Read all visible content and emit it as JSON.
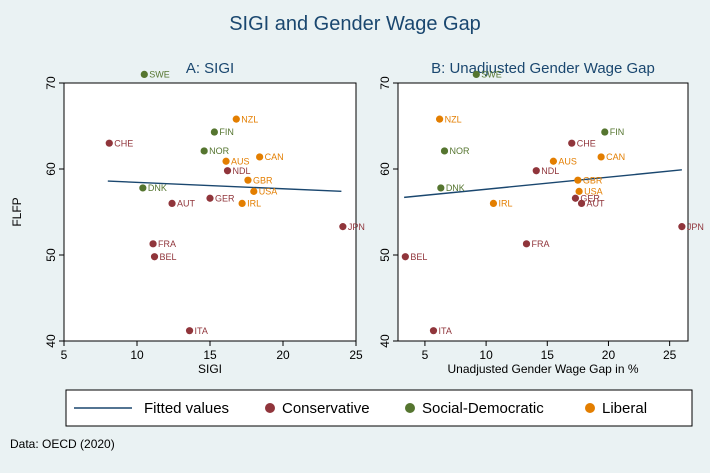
{
  "title": "SIGI and Gender Wage Gap",
  "note": "Data: OECD (2020)",
  "colors": {
    "Conservative": "#90353b",
    "Social-Democratic": "#55752f",
    "Liberal": "#e37e00",
    "fit": "#1a476f",
    "plot_bg": "#ffffff",
    "outer_bg": "#eaf2f3"
  },
  "legend": {
    "position": "bottom",
    "items": [
      {
        "label": "Fitted values",
        "kind": "line",
        "color": "#1a476f"
      },
      {
        "label": "Conservative",
        "kind": "dot",
        "color": "#90353b"
      },
      {
        "label": "Social-Democratic",
        "kind": "dot",
        "color": "#55752f"
      },
      {
        "label": "Liberal",
        "kind": "dot",
        "color": "#e37e00"
      }
    ]
  },
  "chart_data": [
    {
      "type": "scatter",
      "title": "A: SIGI",
      "xlabel": "SIGI",
      "ylabel": "FLFP",
      "xlim": [
        5,
        25
      ],
      "ylim": [
        40,
        70
      ],
      "xticks": [
        5,
        10,
        15,
        20,
        25
      ],
      "yticks": [
        40,
        50,
        60,
        70
      ],
      "fit": {
        "x": [
          8,
          24
        ],
        "y": [
          58.6,
          57.4
        ]
      },
      "points": [
        {
          "label": "SWE",
          "x": 10.5,
          "y": 71,
          "group": "Social-Democratic"
        },
        {
          "label": "NZL",
          "x": 16.8,
          "y": 65.8,
          "group": "Liberal"
        },
        {
          "label": "FIN",
          "x": 15.3,
          "y": 64.3,
          "group": "Social-Democratic"
        },
        {
          "label": "CHE",
          "x": 8.1,
          "y": 63,
          "group": "Conservative"
        },
        {
          "label": "NOR",
          "x": 14.6,
          "y": 62.1,
          "group": "Social-Democratic"
        },
        {
          "label": "CAN",
          "x": 18.4,
          "y": 61.4,
          "group": "Liberal"
        },
        {
          "label": "AUS",
          "x": 16.1,
          "y": 60.9,
          "group": "Liberal"
        },
        {
          "label": "NDL",
          "x": 16.2,
          "y": 59.8,
          "group": "Conservative"
        },
        {
          "label": "GBR",
          "x": 17.6,
          "y": 58.7,
          "group": "Liberal"
        },
        {
          "label": "DNK",
          "x": 10.4,
          "y": 57.8,
          "group": "Social-Democratic"
        },
        {
          "label": "USA",
          "x": 18,
          "y": 57.4,
          "group": "Liberal"
        },
        {
          "label": "GER",
          "x": 15,
          "y": 56.6,
          "group": "Conservative"
        },
        {
          "label": "IRL",
          "x": 17.2,
          "y": 56,
          "group": "Liberal"
        },
        {
          "label": "AUT",
          "x": 12.4,
          "y": 56,
          "group": "Conservative"
        },
        {
          "label": "JPN",
          "x": 24.1,
          "y": 53.3,
          "group": "Conservative"
        },
        {
          "label": "FRA",
          "x": 11.1,
          "y": 51.3,
          "group": "Conservative"
        },
        {
          "label": "BEL",
          "x": 11.2,
          "y": 49.8,
          "group": "Conservative"
        },
        {
          "label": "ITA",
          "x": 13.6,
          "y": 41.2,
          "group": "Conservative"
        }
      ]
    },
    {
      "type": "scatter",
      "title": "B: Unadjusted Gender Wage Gap",
      "xlabel": "Unadjusted Gender Wage Gap in %",
      "ylabel": "",
      "xlim": [
        2.8,
        26.5
      ],
      "ylim": [
        40,
        70
      ],
      "xticks": [
        5,
        10,
        15,
        20,
        25
      ],
      "yticks": [
        40,
        50,
        60,
        70
      ],
      "fit": {
        "x": [
          3.3,
          26
        ],
        "y": [
          56.7,
          59.9
        ]
      },
      "points": [
        {
          "label": "SWE",
          "x": 9.2,
          "y": 71,
          "group": "Social-Democratic"
        },
        {
          "label": "NZL",
          "x": 6.2,
          "y": 65.8,
          "group": "Liberal"
        },
        {
          "label": "FIN",
          "x": 19.7,
          "y": 64.3,
          "group": "Social-Democratic"
        },
        {
          "label": "CHE",
          "x": 17,
          "y": 63,
          "group": "Conservative"
        },
        {
          "label": "NOR",
          "x": 6.6,
          "y": 62.1,
          "group": "Social-Democratic"
        },
        {
          "label": "CAN",
          "x": 19.4,
          "y": 61.4,
          "group": "Liberal"
        },
        {
          "label": "AUS",
          "x": 15.5,
          "y": 60.9,
          "group": "Liberal"
        },
        {
          "label": "NDL",
          "x": 14.1,
          "y": 59.8,
          "group": "Conservative"
        },
        {
          "label": "GBR",
          "x": 17.5,
          "y": 58.7,
          "group": "Liberal"
        },
        {
          "label": "DNK",
          "x": 6.3,
          "y": 57.8,
          "group": "Social-Democratic"
        },
        {
          "label": "USA",
          "x": 17.6,
          "y": 57.4,
          "group": "Liberal"
        },
        {
          "label": "GER",
          "x": 17.3,
          "y": 56.6,
          "group": "Conservative"
        },
        {
          "label": "IRL",
          "x": 10.6,
          "y": 56,
          "group": "Liberal"
        },
        {
          "label": "AUT",
          "x": 17.8,
          "y": 56,
          "group": "Conservative"
        },
        {
          "label": "JPN",
          "x": 26,
          "y": 53.3,
          "group": "Conservative"
        },
        {
          "label": "FRA",
          "x": 13.3,
          "y": 51.3,
          "group": "Conservative"
        },
        {
          "label": "BEL",
          "x": 3.4,
          "y": 49.8,
          "group": "Conservative"
        },
        {
          "label": "ITA",
          "x": 5.7,
          "y": 41.2,
          "group": "Conservative"
        }
      ]
    }
  ]
}
